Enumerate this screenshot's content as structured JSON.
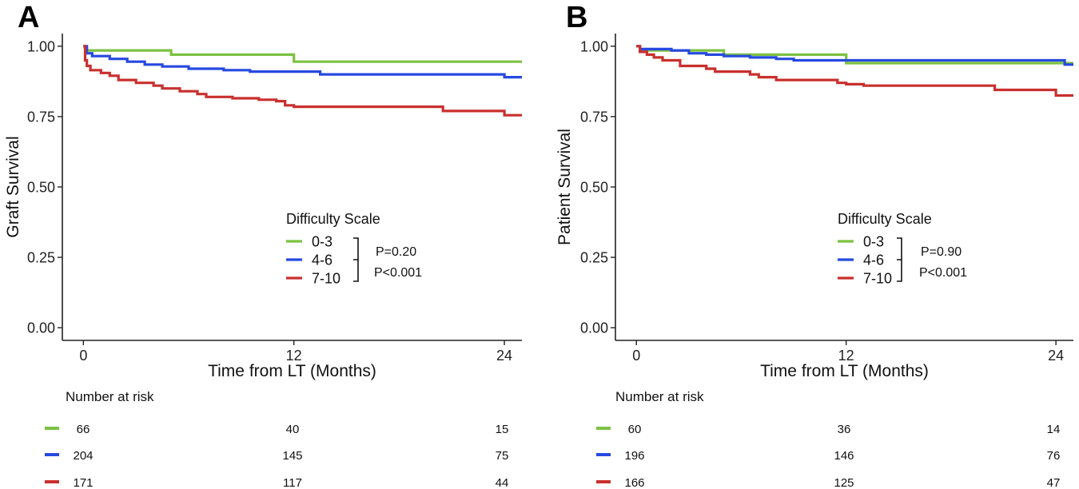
{
  "panels": [
    {
      "letter": "A"
    },
    {
      "letter": "B"
    }
  ],
  "colors": {
    "0-3": "#7cc242",
    "4-6": "#2649e0",
    "7-10": "#c8302e"
  },
  "chart_data": [
    {
      "type": "line",
      "panel": "A",
      "xlabel": "Time from LT (Months)",
      "ylabel": "Graft Survival",
      "xlim": [
        -1.2,
        25
      ],
      "ylim": [
        -0.045,
        1.045
      ],
      "x_ticks": [
        0,
        12,
        24
      ],
      "y_ticks": [
        0.0,
        0.25,
        0.5,
        0.75,
        1.0
      ],
      "y_tick_labels": [
        "0.00",
        "0.25",
        "0.50",
        "0.75",
        "1.00"
      ],
      "grid": false,
      "legend": {
        "title": "Difficulty Scale",
        "placement": "center-right",
        "entries": [
          "0-3",
          "4-6",
          "7-10"
        ],
        "p_values": [
          "P=0.20",
          "P<0.001"
        ]
      },
      "series": [
        {
          "name": "0-3",
          "color": "#7cc242",
          "points": [
            [
              0,
              1.0
            ],
            [
              0.1,
              0.985
            ],
            [
              5,
              0.985
            ],
            [
              5,
              0.97
            ],
            [
              12,
              0.97
            ],
            [
              12,
              0.945
            ],
            [
              25,
              0.945
            ]
          ]
        },
        {
          "name": "4-6",
          "color": "#2649e0",
          "points": [
            [
              0,
              1.0
            ],
            [
              0.2,
              0.975
            ],
            [
              0.5,
              0.965
            ],
            [
              1.5,
              0.955
            ],
            [
              2.5,
              0.945
            ],
            [
              3.5,
              0.935
            ],
            [
              4.5,
              0.928
            ],
            [
              6,
              0.92
            ],
            [
              8,
              0.915
            ],
            [
              9.5,
              0.91
            ],
            [
              13.5,
              0.91
            ],
            [
              13.5,
              0.9
            ],
            [
              24,
              0.9
            ],
            [
              24,
              0.89
            ],
            [
              25,
              0.89
            ]
          ]
        },
        {
          "name": "7-10",
          "color": "#c8302e",
          "points": [
            [
              0,
              1.0
            ],
            [
              0.1,
              0.95
            ],
            [
              0.2,
              0.93
            ],
            [
              0.4,
              0.915
            ],
            [
              1,
              0.905
            ],
            [
              1.5,
              0.895
            ],
            [
              2,
              0.88
            ],
            [
              3,
              0.87
            ],
            [
              4,
              0.86
            ],
            [
              4.5,
              0.85
            ],
            [
              5.5,
              0.84
            ],
            [
              6.5,
              0.83
            ],
            [
              7,
              0.82
            ],
            [
              8.5,
              0.815
            ],
            [
              10,
              0.81
            ],
            [
              11,
              0.805
            ],
            [
              11.5,
              0.79
            ],
            [
              12,
              0.785
            ],
            [
              16,
              0.785
            ],
            [
              20.5,
              0.785
            ],
            [
              20.5,
              0.77
            ],
            [
              24,
              0.77
            ],
            [
              24,
              0.755
            ],
            [
              25,
              0.755
            ]
          ]
        }
      ],
      "risk_table": {
        "title": "Number at risk",
        "time_points": [
          0,
          12,
          24
        ],
        "rows": [
          {
            "group": "0-3",
            "values": [
              "66",
              "40",
              "15"
            ]
          },
          {
            "group": "4-6",
            "values": [
              "204",
              "145",
              "75"
            ]
          },
          {
            "group": "7-10",
            "values": [
              "171",
              "117",
              "44"
            ]
          }
        ]
      }
    },
    {
      "type": "line",
      "panel": "B",
      "xlabel": "Time from LT (Months)",
      "ylabel": "Patient Survival",
      "xlim": [
        -1.2,
        25
      ],
      "ylim": [
        -0.045,
        1.045
      ],
      "x_ticks": [
        0,
        12,
        24
      ],
      "y_ticks": [
        0.0,
        0.25,
        0.5,
        0.75,
        1.0
      ],
      "y_tick_labels": [
        "0.00",
        "0.25",
        "0.50",
        "0.75",
        "1.00"
      ],
      "grid": false,
      "legend": {
        "title": "Difficulty Scale",
        "placement": "center-right",
        "entries": [
          "0-3",
          "4-6",
          "7-10"
        ],
        "p_values": [
          "P=0.90",
          "P<0.001"
        ]
      },
      "series": [
        {
          "name": "0-3",
          "color": "#7cc242",
          "points": [
            [
              0,
              1.0
            ],
            [
              0.2,
              0.985
            ],
            [
              5,
              0.985
            ],
            [
              5,
              0.97
            ],
            [
              12,
              0.97
            ],
            [
              12,
              0.94
            ],
            [
              25,
              0.94
            ]
          ]
        },
        {
          "name": "4-6",
          "color": "#2649e0",
          "points": [
            [
              0,
              1.0
            ],
            [
              0.2,
              0.99
            ],
            [
              2,
              0.985
            ],
            [
              3,
              0.975
            ],
            [
              4,
              0.97
            ],
            [
              5,
              0.965
            ],
            [
              6.5,
              0.96
            ],
            [
              8,
              0.955
            ],
            [
              9,
              0.95
            ],
            [
              24.5,
              0.95
            ],
            [
              24.5,
              0.935
            ],
            [
              25,
              0.935
            ]
          ]
        },
        {
          "name": "7-10",
          "color": "#c8302e",
          "points": [
            [
              0,
              1.0
            ],
            [
              0.2,
              0.98
            ],
            [
              0.6,
              0.97
            ],
            [
              1,
              0.96
            ],
            [
              1.5,
              0.95
            ],
            [
              2.5,
              0.93
            ],
            [
              4,
              0.92
            ],
            [
              4.5,
              0.91
            ],
            [
              6.5,
              0.9
            ],
            [
              7,
              0.89
            ],
            [
              8,
              0.88
            ],
            [
              11.5,
              0.87
            ],
            [
              12,
              0.865
            ],
            [
              13,
              0.86
            ],
            [
              20.5,
              0.86
            ],
            [
              20.5,
              0.845
            ],
            [
              24,
              0.845
            ],
            [
              24,
              0.825
            ],
            [
              25,
              0.825
            ]
          ]
        }
      ],
      "risk_table": {
        "title": "Number at risk",
        "time_points": [
          0,
          12,
          24
        ],
        "rows": [
          {
            "group": "0-3",
            "values": [
              "60",
              "36",
              "14"
            ]
          },
          {
            "group": "4-6",
            "values": [
              "196",
              "146",
              "76"
            ]
          },
          {
            "group": "7-10",
            "values": [
              "166",
              "125",
              "47"
            ]
          }
        ]
      }
    }
  ]
}
